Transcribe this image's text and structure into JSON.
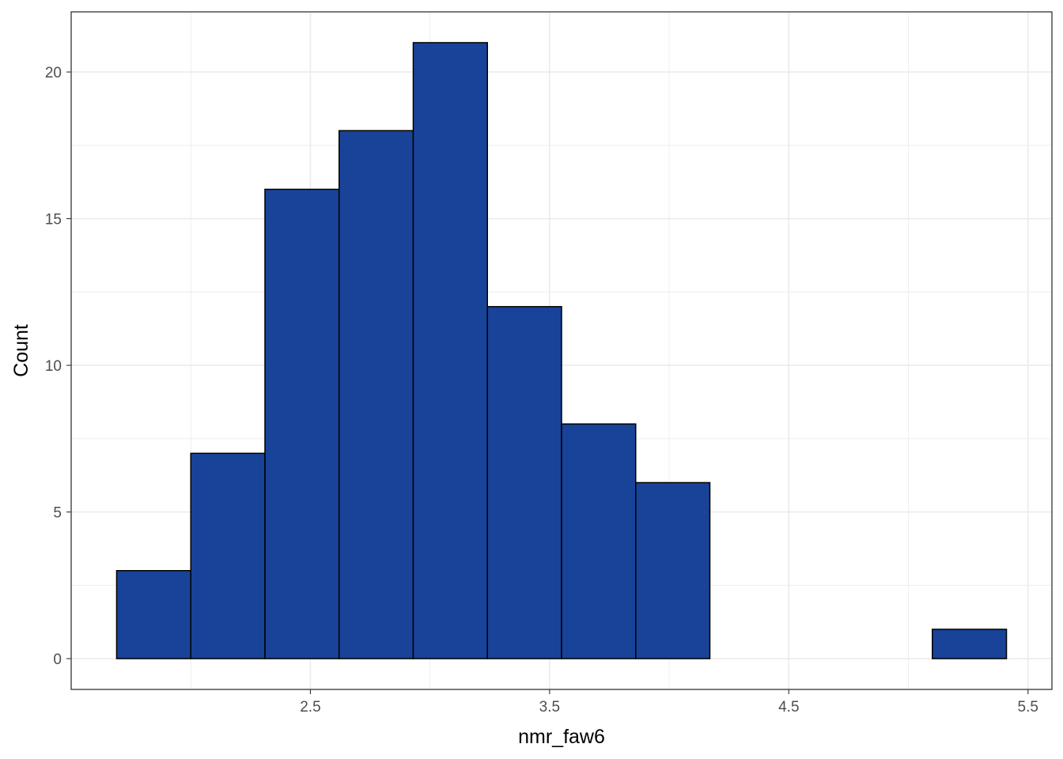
{
  "chart_data": {
    "type": "bar",
    "subtype": "histogram",
    "xlabel": "nmr_faw6",
    "ylabel": "Count",
    "bins": [
      {
        "x0": 1.69,
        "x1": 2.0,
        "count": 3
      },
      {
        "x0": 2.0,
        "x1": 2.31,
        "count": 7
      },
      {
        "x0": 2.31,
        "x1": 2.62,
        "count": 16
      },
      {
        "x0": 2.62,
        "x1": 2.93,
        "count": 18
      },
      {
        "x0": 2.93,
        "x1": 3.24,
        "count": 21
      },
      {
        "x0": 3.24,
        "x1": 3.55,
        "count": 12
      },
      {
        "x0": 3.55,
        "x1": 3.86,
        "count": 8
      },
      {
        "x0": 3.86,
        "x1": 4.17,
        "count": 6
      },
      {
        "x0": 4.17,
        "x1": 4.48,
        "count": 0
      },
      {
        "x0": 4.48,
        "x1": 4.79,
        "count": 0
      },
      {
        "x0": 4.79,
        "x1": 5.1,
        "count": 0
      },
      {
        "x0": 5.1,
        "x1": 5.41,
        "count": 1
      }
    ],
    "xlim": [
      1.5,
      5.6
    ],
    "ylim": [
      -1.05,
      22.05
    ],
    "x_ticks": [
      2.5,
      3.5,
      4.5,
      5.5
    ],
    "x_tick_labels": [
      "2.5",
      "3.5",
      "4.5",
      "5.5"
    ],
    "x_minor_ticks": [
      2.0,
      3.0,
      4.0,
      5.0
    ],
    "y_ticks": [
      0,
      5,
      10,
      15,
      20
    ],
    "y_tick_labels": [
      "0",
      "5",
      "10",
      "15",
      "20"
    ],
    "y_minor_ticks": [
      2.5,
      7.5,
      12.5,
      17.5
    ],
    "grid": true,
    "colors": {
      "bar_fill": "#184399",
      "bar_stroke": "#000000",
      "grid": "#ebebeb",
      "panel_border": "#333333",
      "tick_text": "#4d4d4d"
    }
  }
}
